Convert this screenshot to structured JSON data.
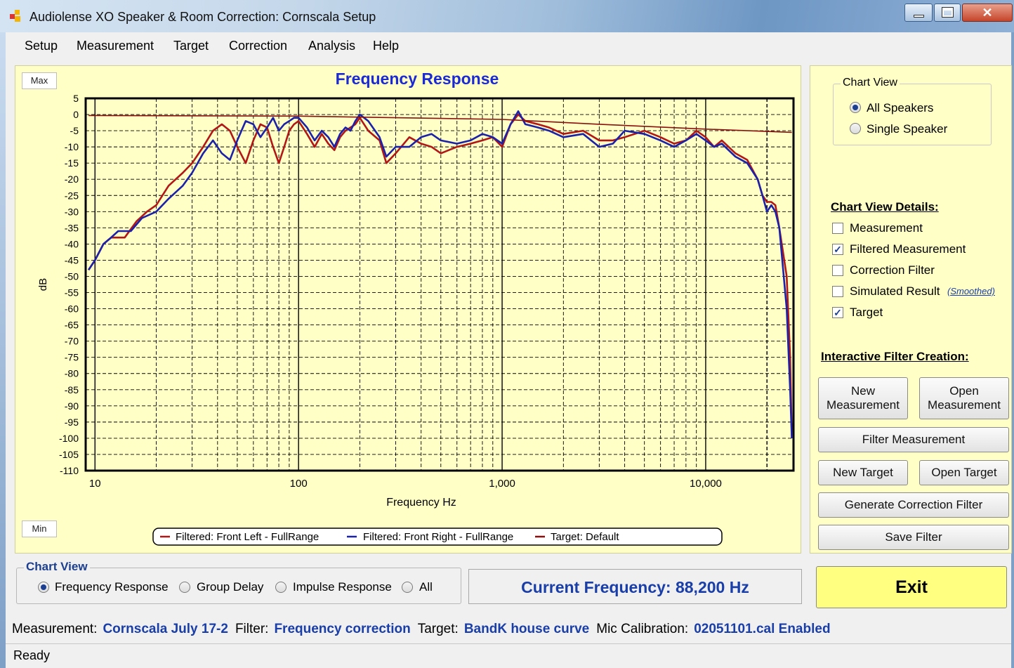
{
  "window": {
    "title": "Audiolense XO Speaker & Room Correction: Cornscala Setup",
    "close_glyph": "✕"
  },
  "menu": [
    "Setup",
    "Measurement",
    "Target",
    "Correction",
    "Analysis",
    "Help"
  ],
  "chart_controls": {
    "max_label": "Max",
    "min_label": "Min"
  },
  "chart_data": {
    "type": "line",
    "title": "Frequency Response",
    "xlabel": "Frequency Hz",
    "ylabel": "dB",
    "x_scale": "log",
    "xlim": [
      9,
      27000
    ],
    "ylim": [
      -110,
      5
    ],
    "x_ticks": [
      10,
      100,
      1000,
      10000
    ],
    "x_tick_labels": [
      "10",
      "100",
      "1,000",
      "10,000"
    ],
    "y_ticks": [
      5,
      0,
      -5,
      -10,
      -15,
      -20,
      -25,
      -30,
      -35,
      -40,
      -45,
      -50,
      -55,
      -60,
      -65,
      -70,
      -75,
      -80,
      -85,
      -90,
      -95,
      -100,
      -105,
      -110
    ],
    "grid": true,
    "legend_position": "bottom",
    "series": [
      {
        "name": "Filtered: Front Left - FullRange",
        "color": "#b01818",
        "points": [
          [
            9.3,
            -48
          ],
          [
            10,
            -45
          ],
          [
            11,
            -40
          ],
          [
            12,
            -38
          ],
          [
            14,
            -38
          ],
          [
            16,
            -33
          ],
          [
            18,
            -30
          ],
          [
            20,
            -28
          ],
          [
            23,
            -22
          ],
          [
            27,
            -18
          ],
          [
            30,
            -15
          ],
          [
            34,
            -10
          ],
          [
            38,
            -5
          ],
          [
            42,
            -3
          ],
          [
            46,
            -5
          ],
          [
            50,
            -10
          ],
          [
            55,
            -15
          ],
          [
            60,
            -8
          ],
          [
            65,
            -3
          ],
          [
            70,
            -4
          ],
          [
            75,
            -10
          ],
          [
            80,
            -15
          ],
          [
            85,
            -10
          ],
          [
            90,
            -5
          ],
          [
            95,
            -3
          ],
          [
            100,
            -2
          ],
          [
            110,
            -6
          ],
          [
            120,
            -10
          ],
          [
            130,
            -6
          ],
          [
            140,
            -9
          ],
          [
            150,
            -11
          ],
          [
            160,
            -7
          ],
          [
            170,
            -5
          ],
          [
            180,
            -4
          ],
          [
            190,
            -3
          ],
          [
            200,
            -1
          ],
          [
            220,
            -5
          ],
          [
            250,
            -8
          ],
          [
            270,
            -15
          ],
          [
            300,
            -12
          ],
          [
            350,
            -7
          ],
          [
            400,
            -9
          ],
          [
            450,
            -10
          ],
          [
            500,
            -12
          ],
          [
            600,
            -10
          ],
          [
            700,
            -9
          ],
          [
            800,
            -8
          ],
          [
            900,
            -7
          ],
          [
            1000,
            -10
          ],
          [
            1100,
            -3
          ],
          [
            1200,
            0
          ],
          [
            1300,
            -2
          ],
          [
            1500,
            -3
          ],
          [
            1700,
            -4
          ],
          [
            2000,
            -6
          ],
          [
            2500,
            -5
          ],
          [
            3000,
            -8
          ],
          [
            3500,
            -8
          ],
          [
            4000,
            -7
          ],
          [
            5000,
            -5
          ],
          [
            6000,
            -7
          ],
          [
            7000,
            -9
          ],
          [
            8000,
            -8
          ],
          [
            9000,
            -5
          ],
          [
            10000,
            -7
          ],
          [
            11000,
            -10
          ],
          [
            12000,
            -8
          ],
          [
            14000,
            -12
          ],
          [
            16000,
            -14
          ],
          [
            18000,
            -20
          ],
          [
            19000,
            -25
          ],
          [
            20000,
            -27
          ],
          [
            21000,
            -27
          ],
          [
            22000,
            -28
          ],
          [
            23000,
            -35
          ],
          [
            25000,
            -50
          ],
          [
            26000,
            -75
          ],
          [
            26500,
            -100
          ]
        ]
      },
      {
        "name": "Filtered: Front Right - FullRange",
        "color": "#1c22a8",
        "points": [
          [
            9.3,
            -48
          ],
          [
            10,
            -45
          ],
          [
            11,
            -40
          ],
          [
            12,
            -38
          ],
          [
            13,
            -36
          ],
          [
            15,
            -36
          ],
          [
            17,
            -32
          ],
          [
            20,
            -30
          ],
          [
            23,
            -26
          ],
          [
            27,
            -22
          ],
          [
            30,
            -18
          ],
          [
            34,
            -12
          ],
          [
            38,
            -8
          ],
          [
            42,
            -12
          ],
          [
            46,
            -14
          ],
          [
            50,
            -8
          ],
          [
            55,
            -2
          ],
          [
            60,
            -3
          ],
          [
            65,
            -7
          ],
          [
            70,
            -4
          ],
          [
            75,
            -1
          ],
          [
            80,
            -5
          ],
          [
            85,
            -3
          ],
          [
            90,
            -2
          ],
          [
            95,
            -1
          ],
          [
            100,
            -1
          ],
          [
            110,
            -4
          ],
          [
            120,
            -8
          ],
          [
            130,
            -5
          ],
          [
            140,
            -7
          ],
          [
            150,
            -10
          ],
          [
            160,
            -6
          ],
          [
            170,
            -4
          ],
          [
            180,
            -5
          ],
          [
            190,
            -2
          ],
          [
            200,
            0
          ],
          [
            220,
            -2
          ],
          [
            250,
            -7
          ],
          [
            270,
            -13
          ],
          [
            300,
            -10
          ],
          [
            350,
            -10
          ],
          [
            400,
            -7
          ],
          [
            450,
            -6
          ],
          [
            500,
            -8
          ],
          [
            600,
            -9
          ],
          [
            700,
            -8
          ],
          [
            800,
            -6
          ],
          [
            900,
            -7
          ],
          [
            1000,
            -9
          ],
          [
            1100,
            -3
          ],
          [
            1200,
            1
          ],
          [
            1300,
            -3
          ],
          [
            1500,
            -4
          ],
          [
            1700,
            -5
          ],
          [
            2000,
            -7
          ],
          [
            2500,
            -6
          ],
          [
            3000,
            -10
          ],
          [
            3500,
            -9
          ],
          [
            4000,
            -5
          ],
          [
            5000,
            -6
          ],
          [
            6000,
            -8
          ],
          [
            7000,
            -10
          ],
          [
            8000,
            -8
          ],
          [
            9000,
            -6
          ],
          [
            10000,
            -8
          ],
          [
            11000,
            -10
          ],
          [
            12000,
            -9
          ],
          [
            14000,
            -13
          ],
          [
            16000,
            -15
          ],
          [
            18000,
            -20
          ],
          [
            19000,
            -25
          ],
          [
            20000,
            -30
          ],
          [
            21000,
            -28
          ],
          [
            22000,
            -30
          ],
          [
            23000,
            -35
          ],
          [
            25000,
            -60
          ],
          [
            26000,
            -85
          ],
          [
            26500,
            -100
          ]
        ]
      },
      {
        "name": "Target: Default",
        "color": "#8a1010",
        "points": [
          [
            9.3,
            -0.3
          ],
          [
            100,
            -0.5
          ],
          [
            1000,
            -1.5
          ],
          [
            3000,
            -3
          ],
          [
            10000,
            -4.5
          ],
          [
            26500,
            -5.5
          ]
        ]
      }
    ]
  },
  "right_panel": {
    "chart_view": {
      "title": "Chart View",
      "options": [
        "All Speakers",
        "Single Speaker"
      ],
      "selected": 0
    },
    "details": {
      "title": "Chart View Details:",
      "items": [
        {
          "label": "Measurement",
          "checked": false
        },
        {
          "label": "Filtered Measurement",
          "checked": true
        },
        {
          "label": "Correction Filter",
          "checked": false
        },
        {
          "label": "Simulated Result",
          "checked": false
        },
        {
          "label": "Target",
          "checked": true
        }
      ],
      "smoothed_link": "(Smoothed)",
      "check_glyph": "✓"
    },
    "filter_creation": {
      "title": "Interactive Filter Creation:",
      "new_measurement": [
        "New",
        "Measurement"
      ],
      "open_measurement": [
        "Open",
        "Measurement"
      ],
      "filter_measurement": "Filter Measurement",
      "new_target": "New Target",
      "open_target": "Open Target",
      "generate": "Generate Correction Filter",
      "save": "Save Filter"
    }
  },
  "bottom": {
    "chart_view": {
      "title": "Chart View",
      "options": [
        "Frequency Response",
        "Group Delay",
        "Impulse Response",
        "All"
      ],
      "selected": 0
    },
    "current_frequency": "Current Frequency: 88,200 Hz",
    "exit": "Exit"
  },
  "info": {
    "measurement_label": "Measurement:",
    "measurement_value": "Cornscala July 17-2",
    "filter_label": "Filter:",
    "filter_value": "Frequency correction",
    "target_label": "Target:",
    "target_value": "BandK house curve",
    "mic_label": "Mic Calibration:",
    "mic_value": "02051101.cal Enabled"
  },
  "status": "Ready"
}
